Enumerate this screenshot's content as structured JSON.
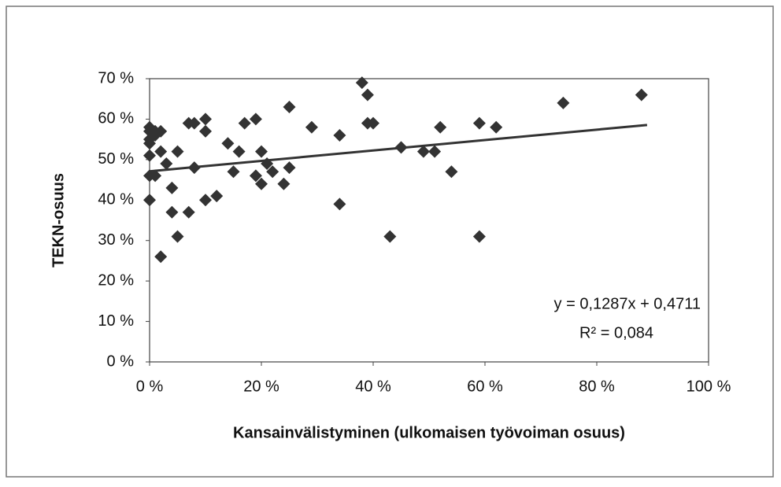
{
  "chart_data": {
    "type": "scatter",
    "xlabel": "Kansainvälistyminen (ulkomaisen työvoiman osuus)",
    "ylabel": "TEKN-osuus",
    "color": "#333333",
    "x": [
      0,
      0,
      0,
      1,
      0,
      1,
      2,
      0,
      0,
      1,
      0,
      2,
      3,
      5,
      4,
      4,
      7,
      5,
      2,
      7,
      8,
      10,
      10,
      8,
      10,
      12,
      14,
      16,
      17,
      19,
      15,
      19,
      20,
      21,
      22,
      25,
      25,
      20,
      24,
      29,
      34,
      34,
      38,
      39,
      39,
      40,
      45,
      43,
      49,
      51,
      52,
      54,
      59,
      62,
      59,
      74,
      88
    ],
    "values": [
      58,
      57,
      55,
      56,
      54,
      57,
      57,
      51,
      46,
      46,
      40,
      52,
      49,
      52,
      43,
      37,
      37,
      31,
      26,
      59,
      59,
      60,
      57,
      48,
      40,
      41,
      54,
      52,
      59,
      60,
      47,
      46,
      52,
      49,
      47,
      63,
      48,
      44,
      44,
      58,
      56,
      39,
      69,
      66,
      59,
      59,
      53,
      31,
      52,
      52,
      58,
      47,
      59,
      58,
      31,
      64,
      66
    ],
    "trendline": {
      "x": [
        0,
        89
      ],
      "y": [
        47.11,
        58.56
      ],
      "color": "#333333"
    },
    "annotations": [
      "y = 0,1287x + 0,4711",
      "R² = 0,084"
    ],
    "xlim": [
      0,
      100
    ],
    "xticks": [
      {
        "value": 0,
        "label": "0 %"
      },
      {
        "value": 20,
        "label": "20 %"
      },
      {
        "value": 40,
        "label": "40 %"
      },
      {
        "value": 60,
        "label": "60 %"
      },
      {
        "value": 80,
        "label": "80 %"
      },
      {
        "value": 100,
        "label": "100 %"
      }
    ],
    "ylim": [
      0,
      70
    ],
    "yticks": [
      {
        "value": 0,
        "label": "0 %"
      },
      {
        "value": 10,
        "label": "10 %"
      },
      {
        "value": 20,
        "label": "20 %"
      },
      {
        "value": 30,
        "label": "30 %"
      },
      {
        "value": 40,
        "label": "40 %"
      },
      {
        "value": 50,
        "label": "50 %"
      },
      {
        "value": 60,
        "label": "60 %"
      },
      {
        "value": 70,
        "label": "70 %"
      }
    ]
  }
}
